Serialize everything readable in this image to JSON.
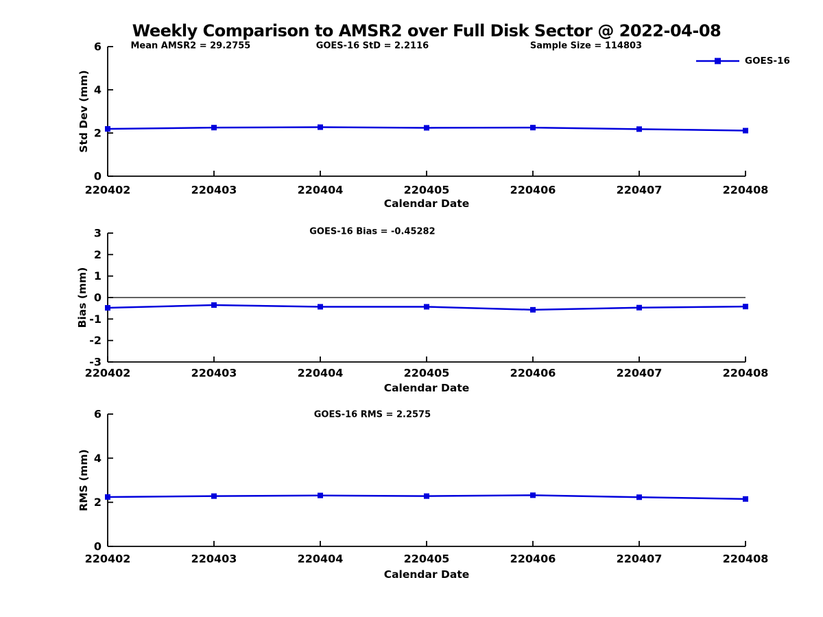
{
  "title": "Weekly Comparison to AMSR2 over Full Disk Sector @ 2022-04-08",
  "colors": {
    "accent": "#0000dd",
    "axis": "#000000",
    "text": "#000000",
    "background": "#ffffff"
  },
  "legend": {
    "label": "GOES-16",
    "position": "top-right"
  },
  "chart_data": [
    {
      "type": "line",
      "name": "std-dev",
      "ylabel": "Std Dev (mm)",
      "xlabel": "Calendar Date",
      "categories": [
        "220402",
        "220403",
        "220404",
        "220405",
        "220406",
        "220407",
        "220408"
      ],
      "series": [
        {
          "name": "GOES-16",
          "values": [
            2.19,
            2.25,
            2.27,
            2.24,
            2.25,
            2.18,
            2.11
          ]
        }
      ],
      "ylim": [
        0,
        6
      ],
      "yticks": [
        0,
        2,
        4,
        6
      ],
      "zero_line": false,
      "grid": false,
      "show_legend": true,
      "annotations": [
        "Mean AMSR2 = 29.2755",
        "GOES-16 StD = 2.2116",
        "Sample Size = 114803"
      ]
    },
    {
      "type": "line",
      "name": "bias",
      "ylabel": "Bias (mm)",
      "xlabel": "Calendar Date",
      "categories": [
        "220402",
        "220403",
        "220404",
        "220405",
        "220406",
        "220407",
        "220408"
      ],
      "series": [
        {
          "name": "GOES-16",
          "values": [
            -0.48,
            -0.35,
            -0.43,
            -0.43,
            -0.57,
            -0.47,
            -0.42
          ]
        }
      ],
      "ylim": [
        -3,
        3
      ],
      "yticks": [
        -3,
        -2,
        -1,
        0,
        1,
        2,
        3
      ],
      "zero_line": true,
      "grid": false,
      "show_legend": false,
      "annotations": [
        "GOES-16 Bias  = -0.45282"
      ]
    },
    {
      "type": "line",
      "name": "rms",
      "ylabel": "RMS (mm)",
      "xlabel": "Calendar Date",
      "categories": [
        "220402",
        "220403",
        "220404",
        "220405",
        "220406",
        "220407",
        "220408"
      ],
      "series": [
        {
          "name": "GOES-16",
          "values": [
            2.24,
            2.28,
            2.31,
            2.28,
            2.32,
            2.23,
            2.15
          ]
        }
      ],
      "ylim": [
        0,
        6
      ],
      "yticks": [
        0,
        2,
        4,
        6
      ],
      "zero_line": false,
      "grid": false,
      "show_legend": false,
      "annotations": [
        "GOES-16 RMS = 2.2575"
      ]
    }
  ]
}
